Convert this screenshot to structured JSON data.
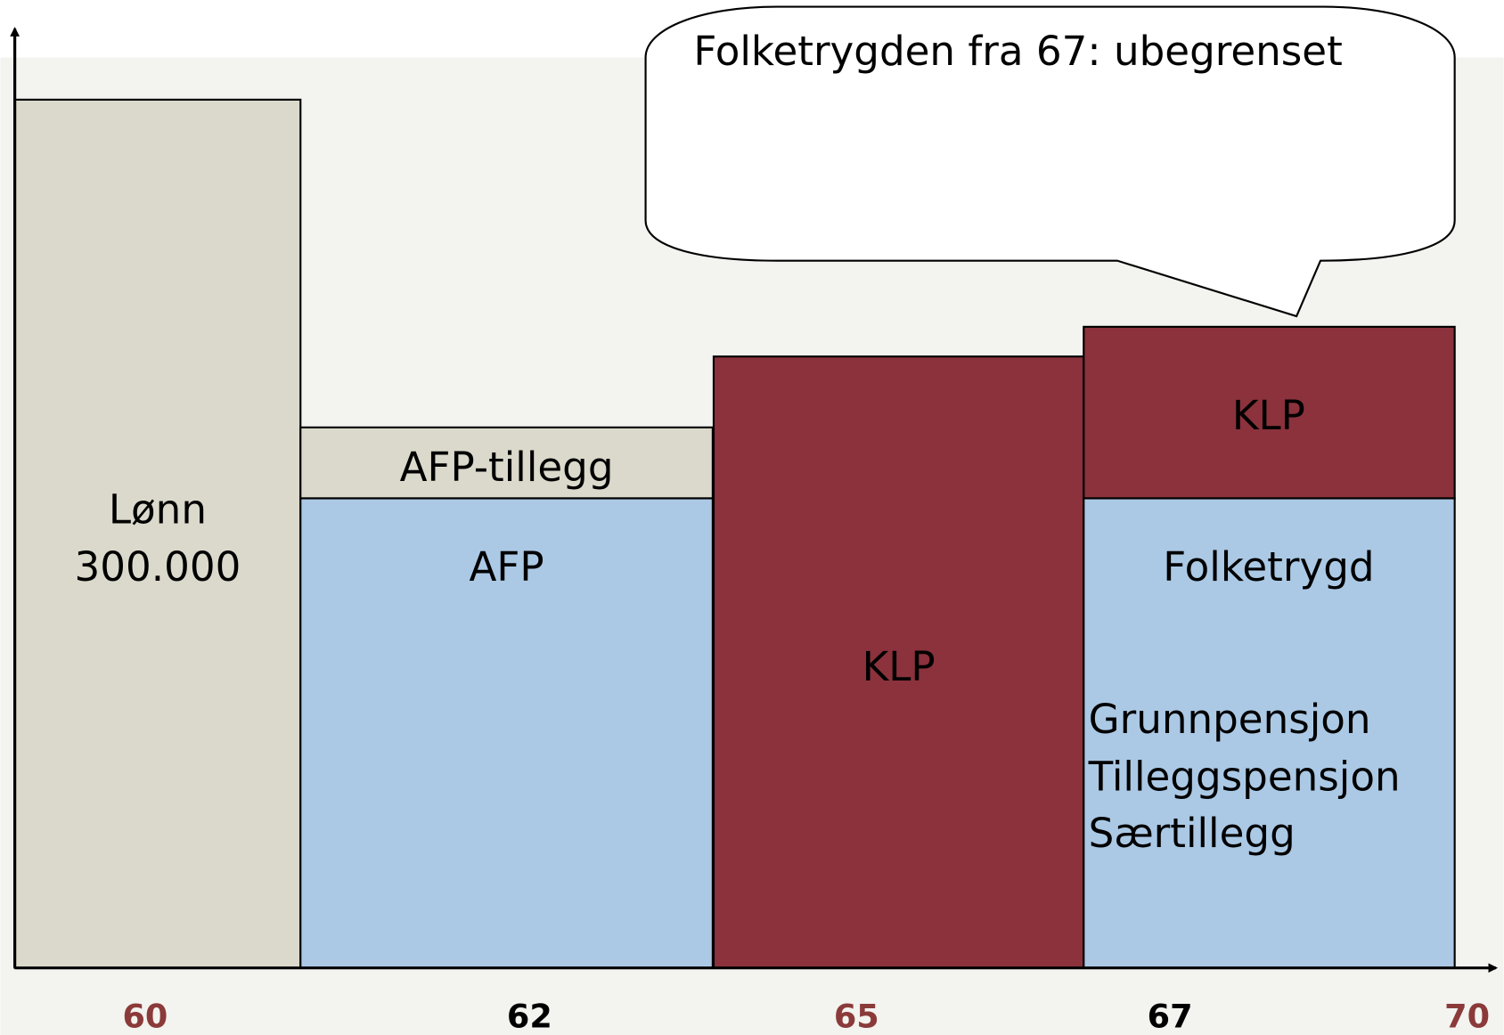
{
  "blocks": {
    "lonn": [
      "Lønn",
      "300.000"
    ],
    "afp_tillegg": "AFP-tillegg",
    "afp": "AFP",
    "klp_middle": "KLP",
    "klp_top": "KLP",
    "folketrygd": "Folketrygd",
    "folketrygd_parts": [
      "Grunnpensjon",
      "Tilleggspensjon",
      "Særtillegg"
    ]
  },
  "callout": "Folketrygden fra 67:  ubegrenset",
  "x_axis": [
    "60",
    "62",
    "65",
    "67",
    "70"
  ]
}
